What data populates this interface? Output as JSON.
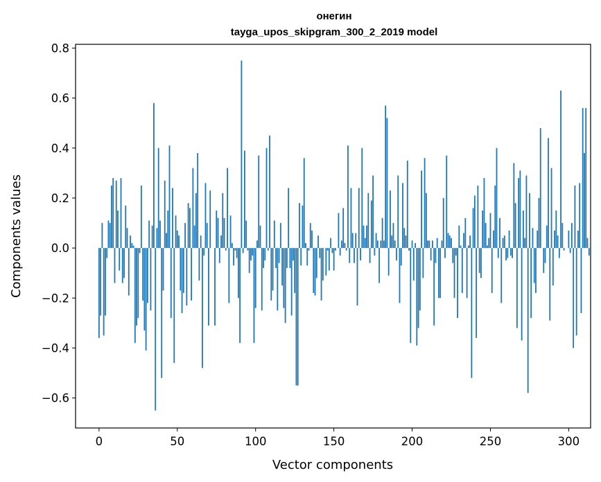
{
  "chart_data": {
    "type": "bar",
    "title": "онегин",
    "subtitle": "tayga_upos_skipgram_300_2_2019 model",
    "xlabel": "Vector components",
    "ylabel": "Components values",
    "xlim": [
      -15,
      314
    ],
    "ylim": [
      -0.72,
      0.815
    ],
    "xticks": [
      0,
      50,
      100,
      150,
      200,
      250,
      300
    ],
    "yticks": [
      -0.6,
      -0.4,
      -0.2,
      0.0,
      0.2,
      0.4,
      0.6,
      0.8
    ],
    "xtick_labels": [
      "0",
      "50",
      "100",
      "150",
      "200",
      "250",
      "300"
    ],
    "ytick_labels": [
      "−0.6",
      "−0.4",
      "−0.2",
      "0.0",
      "0.2",
      "0.4",
      "0.6",
      "0.8"
    ],
    "bar_color": "#1f77b4",
    "grid": false,
    "legend": "none",
    "values": [
      -0.36,
      -0.27,
      0.1,
      -0.35,
      -0.27,
      -0.04,
      0.11,
      0.1,
      0.25,
      0.28,
      -0.14,
      0.27,
      0.15,
      -0.09,
      0.28,
      -0.14,
      -0.12,
      0.17,
      0.08,
      -0.19,
      0.05,
      0.02,
      0.01,
      -0.38,
      -0.31,
      -0.28,
      -0.02,
      0.25,
      -0.21,
      -0.33,
      -0.41,
      -0.22,
      0.11,
      -0.25,
      0.09,
      0.58,
      -0.65,
      0.08,
      0.4,
      0.11,
      -0.52,
      -0.17,
      0.27,
      0.06,
      0.15,
      0.41,
      -0.28,
      0.24,
      -0.46,
      0.13,
      0.07,
      0.05,
      -0.17,
      -0.26,
      -0.18,
      0.1,
      -0.23,
      0.18,
      0.16,
      -0.21,
      0.32,
      0.09,
      0.22,
      0.38,
      -0.13,
      0.05,
      -0.48,
      -0.03,
      0.26,
      0.1,
      -0.31,
      0.23,
      0.0,
      0.0,
      -0.31,
      0.15,
      0.12,
      -0.06,
      0.05,
      0.22,
      0.12,
      -0.01,
      0.32,
      -0.22,
      0.13,
      0.02,
      -0.07,
      -0.01,
      -0.04,
      -0.2,
      -0.38,
      0.75,
      -0.02,
      0.39,
      0.11,
      -0.01,
      -0.1,
      -0.05,
      -0.03,
      -0.38,
      -0.24,
      0.03,
      0.37,
      0.09,
      -0.25,
      -0.08,
      -0.05,
      0.4,
      -0.01,
      0.45,
      -0.21,
      -0.17,
      0.11,
      -0.08,
      -0.25,
      -0.06,
      0.1,
      -0.15,
      -0.24,
      -0.3,
      -0.08,
      0.24,
      -0.08,
      -0.27,
      -0.05,
      -0.18,
      -0.55,
      -0.55,
      0.18,
      -0.07,
      0.17,
      0.36,
      0.02,
      -0.07,
      -0.01,
      0.1,
      0.07,
      -0.18,
      -0.19,
      -0.12,
      0.05,
      -0.04,
      -0.21,
      -0.13,
      0.0,
      -0.11,
      -0.01,
      -0.09,
      0.04,
      -0.02,
      -0.09,
      -0.01,
      0.0,
      0.14,
      -0.03,
      0.03,
      0.16,
      0.02,
      -0.01,
      0.41,
      -0.06,
      0.24,
      0.06,
      -0.06,
      0.06,
      -0.23,
      0.24,
      -0.05,
      0.4,
      0.09,
      0.04,
      0.09,
      0.22,
      -0.06,
      0.19,
      0.29,
      -0.03,
      0.06,
      0.03,
      -0.14,
      0.03,
      0.12,
      0.03,
      0.57,
      0.52,
      -0.11,
      0.23,
      0.05,
      0.1,
      0.03,
      -0.05,
      0.29,
      -0.22,
      -0.07,
      0.26,
      0.08,
      0.05,
      0.35,
      -0.01,
      -0.38,
      0.03,
      -0.13,
      0.02,
      -0.39,
      -0.32,
      -0.25,
      0.31,
      -0.12,
      0.36,
      0.22,
      0.03,
      0.03,
      -0.05,
      0.03,
      -0.31,
      -0.06,
      0.04,
      -0.2,
      -0.2,
      0.03,
      0.2,
      -0.04,
      0.37,
      0.06,
      0.05,
      0.04,
      -0.06,
      -0.2,
      -0.03,
      -0.28,
      0.09,
      0.01,
      -0.18,
      0.06,
      0.12,
      -0.2,
      0.01,
      0.05,
      -0.52,
      0.16,
      0.21,
      -0.36,
      0.25,
      -0.1,
      -0.12,
      0.15,
      0.28,
      0.1,
      0.01,
      0.04,
      0.14,
      -0.18,
      0.07,
      0.25,
      0.4,
      -0.04,
      0.12,
      -0.22,
      0.04,
      0.05,
      -0.05,
      -0.04,
      0.07,
      -0.03,
      -0.04,
      0.34,
      0.18,
      -0.32,
      0.28,
      0.31,
      -0.37,
      0.15,
      0.04,
      0.29,
      -0.58,
      0.22,
      -0.28,
      0.08,
      -0.14,
      -0.18,
      0.07,
      0.2,
      0.48,
      0.0,
      -0.1,
      -0.06,
      0.09,
      0.44,
      -0.29,
      0.32,
      -0.15,
      0.07,
      0.15,
      0.05,
      -0.04,
      0.63,
      0.1,
      -0.01,
      0.0,
      0.0,
      0.07,
      -0.02,
      0.1,
      -0.4,
      0.25,
      -0.35,
      0.07,
      0.26,
      -0.26,
      0.56,
      0.38,
      0.56,
      0.04,
      -0.03
    ]
  }
}
